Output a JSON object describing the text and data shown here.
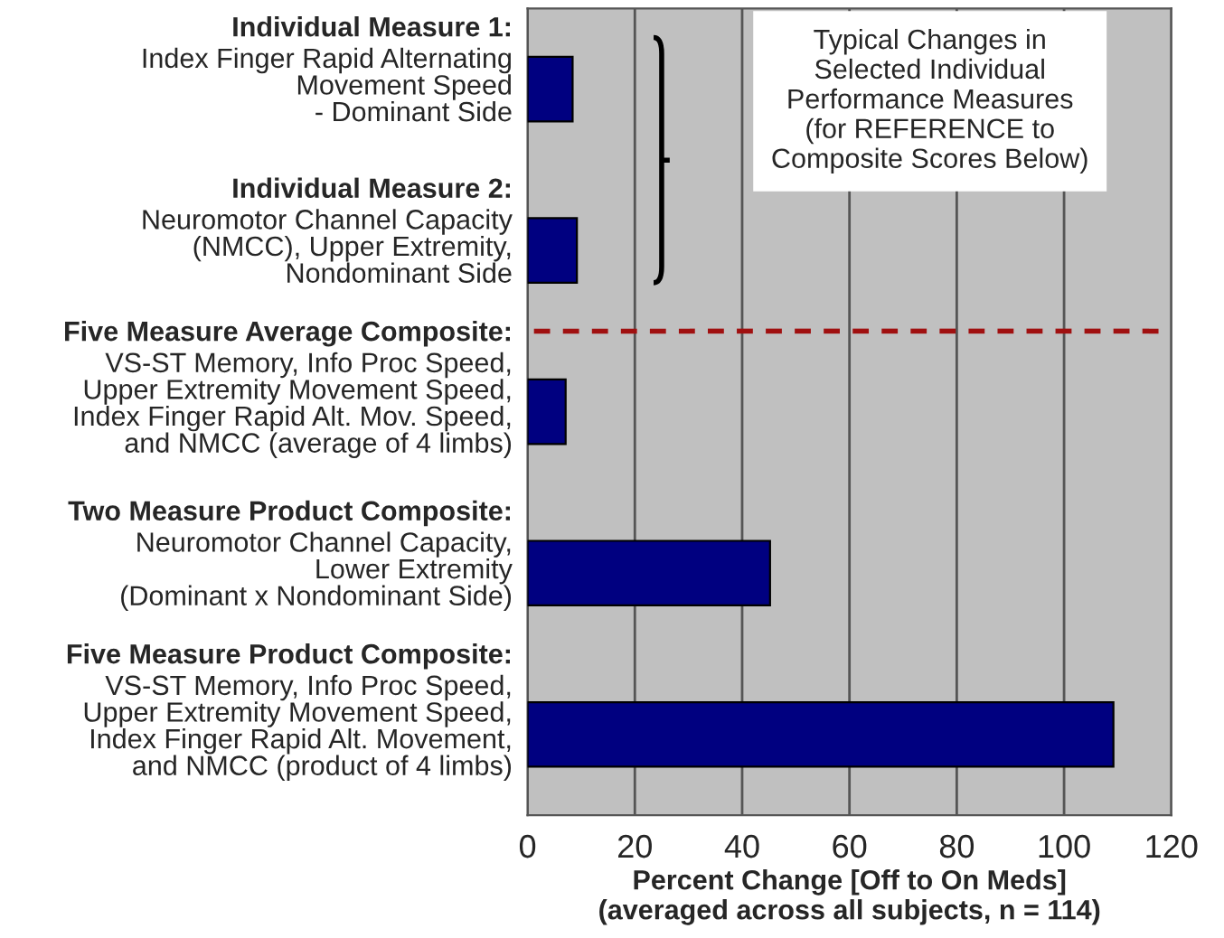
{
  "chart_data": {
    "type": "bar",
    "orientation": "horizontal",
    "xlabel": "Percent Change [Off to On Meds]\n(averaged across all subjects, n = 114)",
    "categories": [
      "Individual Measure 1:\nIndex Finger Rapid Alternating\nMovement Speed\n- Dominant Side",
      "Individual Measure 2:\nNeuromotor Channel Capacity\n(NMCC), Upper Extremity,\nNondominant Side",
      "Five Measure Average Composite:\nVS-ST Memory, Info Proc Speed,\nUpper Extremity Movement Speed,\nIndex Finger Rapid Alt. Mov. Speed,\nand NMCC (average of 4 limbs)",
      "Two Measure Product Composite:\nNeuromotor Channel Capacity,\nLower Extremity\n(Dominant x Nondominant Side)",
      "Five Measure Product Composite:\nVS-ST Memory, Info Proc Speed,\nUpper Extremity Movement Speed,\nIndex Finger Rapid Alt. Movement,\nand NMCC (product of 4 limbs)"
    ],
    "values": [
      8.4,
      9.2,
      7.1,
      45.2,
      109.2
    ],
    "color": "#000080",
    "xlim": [
      0,
      120
    ],
    "xticks": [
      0,
      20,
      40,
      60,
      80,
      100,
      120
    ],
    "grid": "x",
    "annotations": [
      "Typical Changes in\nSelected Individual\nPerformance Measures\n(for REFERENCE to\nComposite Scores Below)"
    ]
  }
}
